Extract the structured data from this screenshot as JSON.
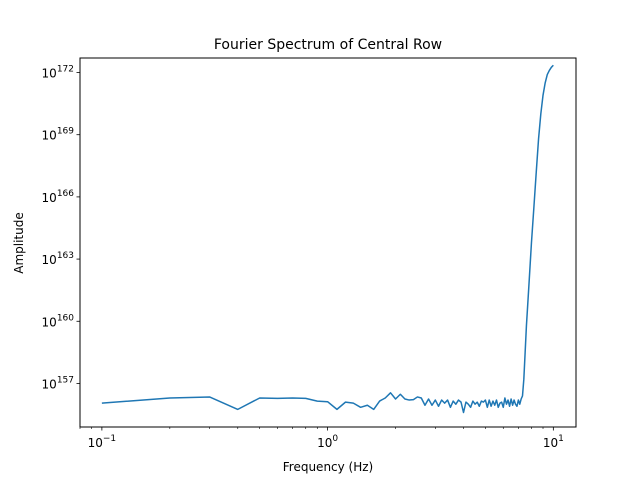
{
  "chart_data": {
    "type": "line",
    "title": "Fourier Spectrum of Central Row",
    "xlabel": "Frequency (Hz)",
    "ylabel": "Amplitude",
    "xscale": "log",
    "yscale": "log",
    "xlim": [
      0.08,
      12.6
    ],
    "ylim_exponent": [
      154.9,
      172.7
    ],
    "grid": false,
    "line_color": "#1f77b4",
    "x_ticks": [
      {
        "base": "10",
        "exp": "−1",
        "value": 0.1
      },
      {
        "base": "10",
        "exp": "0",
        "value": 1
      },
      {
        "base": "10",
        "exp": "1",
        "value": 10
      }
    ],
    "y_ticks": [
      {
        "base": "10",
        "exp": "157",
        "value": 157
      },
      {
        "base": "10",
        "exp": "160",
        "value": 160
      },
      {
        "base": "10",
        "exp": "163",
        "value": 163
      },
      {
        "base": "10",
        "exp": "166",
        "value": 166
      },
      {
        "base": "10",
        "exp": "169",
        "value": 169
      },
      {
        "base": "10",
        "exp": "172",
        "value": 172
      }
    ],
    "series": [
      {
        "x": [
          0.1,
          0.2,
          0.3,
          0.4,
          0.5,
          0.6,
          0.7,
          0.8,
          0.9,
          1.0,
          1.1,
          1.2,
          1.3,
          1.4,
          1.5,
          1.6,
          1.7,
          1.8,
          1.9,
          2.0,
          2.1,
          2.2,
          2.3,
          2.4,
          2.5,
          2.6,
          2.7,
          2.8,
          2.9,
          3.0,
          3.1,
          3.2,
          3.3,
          3.4,
          3.5,
          3.6,
          3.7,
          3.8,
          3.9,
          4.0,
          4.1,
          4.2,
          4.3,
          4.4,
          4.5,
          4.6,
          4.7,
          4.8,
          4.9,
          5.0,
          5.1,
          5.2,
          5.3,
          5.4,
          5.5,
          5.6,
          5.7,
          5.8,
          5.9,
          6.0,
          6.1,
          6.2,
          6.3,
          6.4,
          6.5,
          6.6,
          6.7,
          6.8,
          6.9,
          7.0,
          7.1,
          7.2,
          7.3,
          7.4,
          7.5,
          7.6,
          7.7,
          7.8,
          7.9,
          8.0,
          8.2,
          8.4,
          8.6,
          8.8,
          9.0,
          9.2,
          9.4,
          9.6,
          9.8,
          10.0
        ],
        "y_exponent": [
          156.05,
          156.3,
          156.35,
          155.75,
          156.3,
          156.28,
          156.3,
          156.28,
          156.15,
          156.12,
          155.75,
          156.1,
          156.05,
          155.85,
          155.95,
          155.75,
          156.15,
          156.3,
          156.55,
          156.25,
          156.48,
          156.25,
          156.2,
          156.22,
          156.35,
          156.3,
          155.95,
          156.25,
          155.95,
          156.2,
          155.9,
          156.2,
          156.05,
          156.2,
          155.85,
          156.15,
          156.0,
          156.2,
          156.1,
          155.6,
          156.1,
          156.0,
          155.85,
          156.15,
          156.0,
          156.1,
          155.9,
          156.15,
          156.1,
          156.2,
          155.85,
          156.2,
          155.9,
          156.15,
          155.95,
          156.2,
          155.85,
          156.05,
          156.1,
          155.85,
          156.3,
          156.0,
          156.2,
          155.9,
          156.25,
          155.95,
          156.2,
          156.0,
          155.9,
          156.2,
          156.0,
          156.25,
          156.4,
          157.2,
          158.5,
          159.8,
          160.8,
          161.8,
          162.8,
          163.8,
          165.5,
          167.2,
          168.8,
          170.0,
          170.9,
          171.5,
          171.9,
          172.1,
          172.25,
          172.35
        ]
      }
    ]
  }
}
